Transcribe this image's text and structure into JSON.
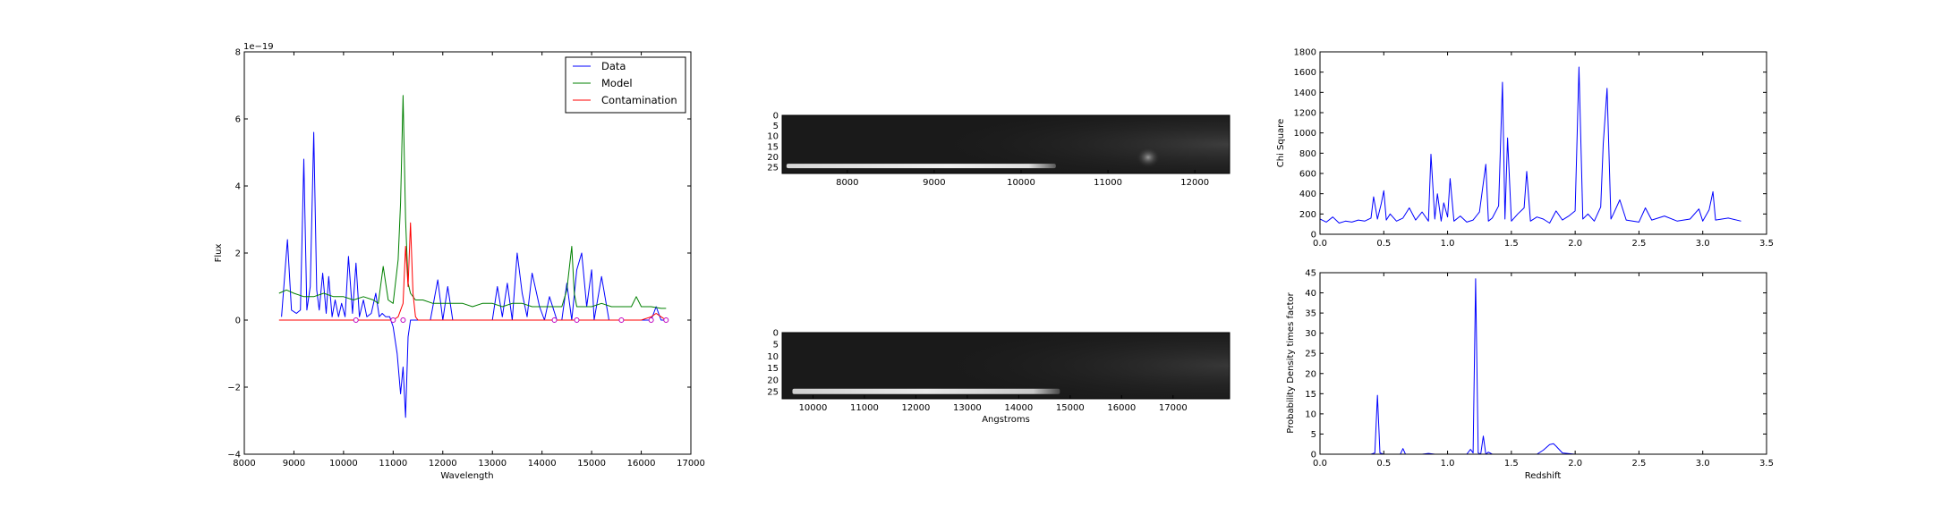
{
  "chart_data": [
    {
      "id": "spectrum",
      "type": "line",
      "xlabel": "Wavelength",
      "ylabel": "Flux",
      "offset_text": "1e−19",
      "xlim": [
        8000,
        17000
      ],
      "ylim": [
        -4,
        8
      ],
      "xticks": [
        8000,
        9000,
        10000,
        11000,
        12000,
        13000,
        14000,
        15000,
        16000,
        17000
      ],
      "yticks": [
        -4,
        -2,
        0,
        2,
        4,
        6,
        8
      ],
      "ytick_labels": [
        "−4",
        "−2",
        "0",
        "2",
        "4",
        "6",
        "8"
      ],
      "legend": {
        "placement": "upper-right",
        "entries": [
          "Data",
          "Model",
          "Contamination"
        ]
      },
      "series": [
        {
          "name": "Data",
          "color": "#0000ff",
          "x": [
            8750,
            8870,
            8950,
            9050,
            9130,
            9200,
            9260,
            9330,
            9400,
            9460,
            9510,
            9580,
            9650,
            9700,
            9770,
            9830,
            9900,
            9960,
            10030,
            10100,
            10180,
            10250,
            10320,
            10400,
            10470,
            10560,
            10650,
            10720,
            10780,
            10850,
            10930,
            11000,
            11080,
            11150,
            11200,
            11250,
            11300,
            11350,
            11400,
            11450,
            11550,
            11650,
            11750,
            11900,
            12000,
            12100,
            12200,
            12300,
            12400,
            12550,
            12700,
            12850,
            13000,
            13100,
            13200,
            13300,
            13400,
            13500,
            13600,
            13700,
            13800,
            13950,
            14050,
            14150,
            14300,
            14400,
            14500,
            14600,
            14700,
            14800,
            14900,
            15000,
            15050,
            15200,
            15350,
            15500,
            15700,
            15850,
            16000,
            16100,
            16200,
            16300,
            16400,
            16450
          ],
          "values": [
            0.1,
            2.4,
            0.3,
            0.2,
            0.3,
            4.8,
            0.3,
            1.0,
            5.6,
            0.9,
            0.3,
            1.4,
            0.2,
            1.3,
            0.1,
            0.6,
            0.1,
            0.5,
            0.1,
            1.9,
            0.2,
            1.7,
            0.1,
            0.6,
            0.1,
            0.2,
            0.8,
            0.1,
            0.2,
            0.1,
            0.1,
            -0.2,
            -1.0,
            -2.2,
            -1.4,
            -2.9,
            -0.5,
            0.0,
            0.0,
            0.0,
            0.0,
            0.0,
            0.0,
            1.2,
            0.0,
            1.0,
            0.0,
            0.0,
            0.0,
            0.0,
            0.0,
            0.0,
            0.0,
            1.0,
            0.1,
            1.1,
            0.0,
            2.0,
            0.8,
            0.1,
            1.4,
            0.4,
            0.0,
            0.7,
            0.0,
            0.0,
            1.1,
            0.0,
            1.5,
            2.0,
            0.4,
            1.5,
            0.0,
            1.3,
            0.0,
            0.0,
            0.0,
            0.0,
            0.0,
            0.0,
            0.0,
            0.4,
            0.0,
            0.0
          ]
        },
        {
          "name": "Model",
          "color": "#008000",
          "x": [
            8700,
            8850,
            9000,
            9200,
            9400,
            9600,
            9800,
            10000,
            10200,
            10400,
            10600,
            10700,
            10800,
            10900,
            11000,
            11100,
            11150,
            11200,
            11250,
            11300,
            11350,
            11450,
            11600,
            11800,
            12000,
            12200,
            12400,
            12600,
            12800,
            13000,
            13200,
            13400,
            13600,
            13800,
            14000,
            14200,
            14400,
            14500,
            14600,
            14650,
            14700,
            14800,
            15000,
            15200,
            15400,
            15600,
            15800,
            15900,
            16000,
            16200,
            16400,
            16500
          ],
          "values": [
            0.8,
            0.9,
            0.8,
            0.7,
            0.7,
            0.8,
            0.7,
            0.7,
            0.6,
            0.7,
            0.6,
            0.5,
            1.6,
            0.6,
            0.5,
            1.8,
            3.5,
            6.7,
            3.0,
            1.1,
            0.8,
            0.6,
            0.6,
            0.5,
            0.5,
            0.5,
            0.5,
            0.4,
            0.5,
            0.5,
            0.4,
            0.5,
            0.5,
            0.4,
            0.4,
            0.4,
            0.4,
            0.9,
            2.2,
            0.8,
            0.4,
            0.4,
            0.4,
            0.5,
            0.4,
            0.4,
            0.4,
            0.7,
            0.4,
            0.4,
            0.35,
            0.35
          ]
        },
        {
          "name": "Contamination",
          "color": "#ff0000",
          "x": [
            8700,
            9000,
            10000,
            11000,
            11100,
            11200,
            11250,
            11300,
            11350,
            11400,
            11450,
            11500,
            12000,
            13000,
            14000,
            15000,
            16000,
            16200,
            16300,
            16400,
            16500
          ],
          "values": [
            0.0,
            0.0,
            0.0,
            0.0,
            0.1,
            0.5,
            2.2,
            1.0,
            2.9,
            0.8,
            0.1,
            0.0,
            0.0,
            0.0,
            0.0,
            0.0,
            0.0,
            0.1,
            0.2,
            0.1,
            0.0
          ]
        }
      ],
      "markers": {
        "color": "#bf00bf",
        "x": [
          10250,
          11000,
          11200,
          14250,
          14700,
          15600,
          16200,
          16500
        ],
        "values": [
          0.0,
          0.0,
          0.0,
          0.0,
          0.0,
          0.0,
          0.0,
          0.0
        ]
      }
    },
    {
      "id": "image-top",
      "type": "heatmap",
      "xlim": [
        7250,
        12400
      ],
      "ylim": [
        28,
        0
      ],
      "xticks": [
        8000,
        9000,
        10000,
        11000,
        12000
      ],
      "yticks": [
        0,
        5,
        10,
        15,
        20,
        25
      ],
      "trace": {
        "x_start": 7300,
        "x_end": 10400,
        "row": 22
      },
      "blob": {
        "x": 11400,
        "row": 19
      }
    },
    {
      "id": "image-bottom",
      "type": "heatmap",
      "xlabel": "Angstroms",
      "xlim": [
        9400,
        18100
      ],
      "ylim": [
        28,
        0
      ],
      "xticks": [
        10000,
        11000,
        12000,
        13000,
        14000,
        15000,
        16000,
        17000
      ],
      "yticks": [
        0,
        5,
        10,
        15,
        20,
        25
      ],
      "trace": {
        "x_start": 9600,
        "x_end": 14800,
        "row": 23
      }
    },
    {
      "id": "chi-square",
      "type": "line",
      "ylabel": "Chi Square",
      "xlim": [
        0.0,
        3.5
      ],
      "ylim": [
        0,
        1800
      ],
      "xticks": [
        0.0,
        0.5,
        1.0,
        1.5,
        2.0,
        2.5,
        3.0,
        3.5
      ],
      "xtick_labels": [
        "0.0",
        "0.5",
        "1.0",
        "1.5",
        "2.0",
        "2.5",
        "3.0",
        "3.5"
      ],
      "yticks": [
        0,
        200,
        400,
        600,
        800,
        1000,
        1200,
        1400,
        1600,
        1800
      ],
      "series": [
        {
          "color": "#0000ff",
          "x": [
            0.0,
            0.05,
            0.1,
            0.15,
            0.2,
            0.25,
            0.3,
            0.35,
            0.4,
            0.42,
            0.45,
            0.48,
            0.5,
            0.52,
            0.55,
            0.6,
            0.65,
            0.7,
            0.75,
            0.8,
            0.85,
            0.87,
            0.9,
            0.92,
            0.95,
            0.97,
            1.0,
            1.02,
            1.05,
            1.1,
            1.15,
            1.2,
            1.25,
            1.3,
            1.32,
            1.35,
            1.4,
            1.43,
            1.45,
            1.47,
            1.5,
            1.55,
            1.6,
            1.62,
            1.65,
            1.7,
            1.75,
            1.8,
            1.85,
            1.9,
            1.95,
            2.0,
            2.03,
            2.06,
            2.1,
            2.15,
            2.2,
            2.22,
            2.25,
            2.28,
            2.3,
            2.35,
            2.4,
            2.5,
            2.55,
            2.6,
            2.7,
            2.8,
            2.9,
            2.97,
            3.0,
            3.05,
            3.08,
            3.1,
            3.2,
            3.3
          ],
          "values": [
            150,
            120,
            170,
            110,
            130,
            120,
            140,
            130,
            160,
            370,
            150,
            300,
            430,
            140,
            200,
            130,
            160,
            260,
            140,
            220,
            130,
            790,
            150,
            400,
            130,
            310,
            170,
            550,
            130,
            180,
            120,
            140,
            220,
            690,
            130,
            160,
            280,
            1500,
            150,
            950,
            130,
            200,
            260,
            620,
            130,
            170,
            150,
            110,
            230,
            140,
            180,
            230,
            1650,
            150,
            200,
            130,
            270,
            890,
            1440,
            150,
            200,
            340,
            140,
            120,
            260,
            140,
            180,
            130,
            150,
            250,
            130,
            240,
            420,
            140,
            160,
            130
          ]
        }
      ]
    },
    {
      "id": "probability-density",
      "type": "line",
      "xlabel": "Redshift",
      "ylabel": "Probability Density times factor",
      "xlim": [
        0.0,
        3.5
      ],
      "ylim": [
        0,
        45
      ],
      "xticks": [
        0.0,
        0.5,
        1.0,
        1.5,
        2.0,
        2.5,
        3.0,
        3.5
      ],
      "xtick_labels": [
        "0.0",
        "0.5",
        "1.0",
        "1.5",
        "2.0",
        "2.5",
        "3.0",
        "3.5"
      ],
      "yticks": [
        0,
        5,
        10,
        15,
        20,
        25,
        30,
        35,
        40,
        45
      ],
      "series": [
        {
          "color": "#0000ff",
          "x": [
            0.0,
            0.4,
            0.43,
            0.45,
            0.47,
            0.5,
            0.63,
            0.65,
            0.67,
            0.8,
            0.85,
            0.9,
            1.15,
            1.18,
            1.2,
            1.22,
            1.24,
            1.26,
            1.28,
            1.3,
            1.32,
            1.35,
            1.5,
            1.7,
            1.75,
            1.8,
            1.83,
            1.85,
            1.88,
            1.9,
            2.0,
            2.5,
            3.0,
            3.3
          ],
          "values": [
            0,
            0,
            0.3,
            14.6,
            0.3,
            0,
            0,
            1.4,
            0,
            0,
            0.2,
            0,
            0,
            1.2,
            0.3,
            43.5,
            0.3,
            0,
            4.5,
            0,
            0.5,
            0,
            0,
            0,
            1.0,
            2.4,
            2.6,
            2.0,
            1.0,
            0.3,
            0,
            0,
            0,
            0
          ]
        }
      ]
    }
  ]
}
